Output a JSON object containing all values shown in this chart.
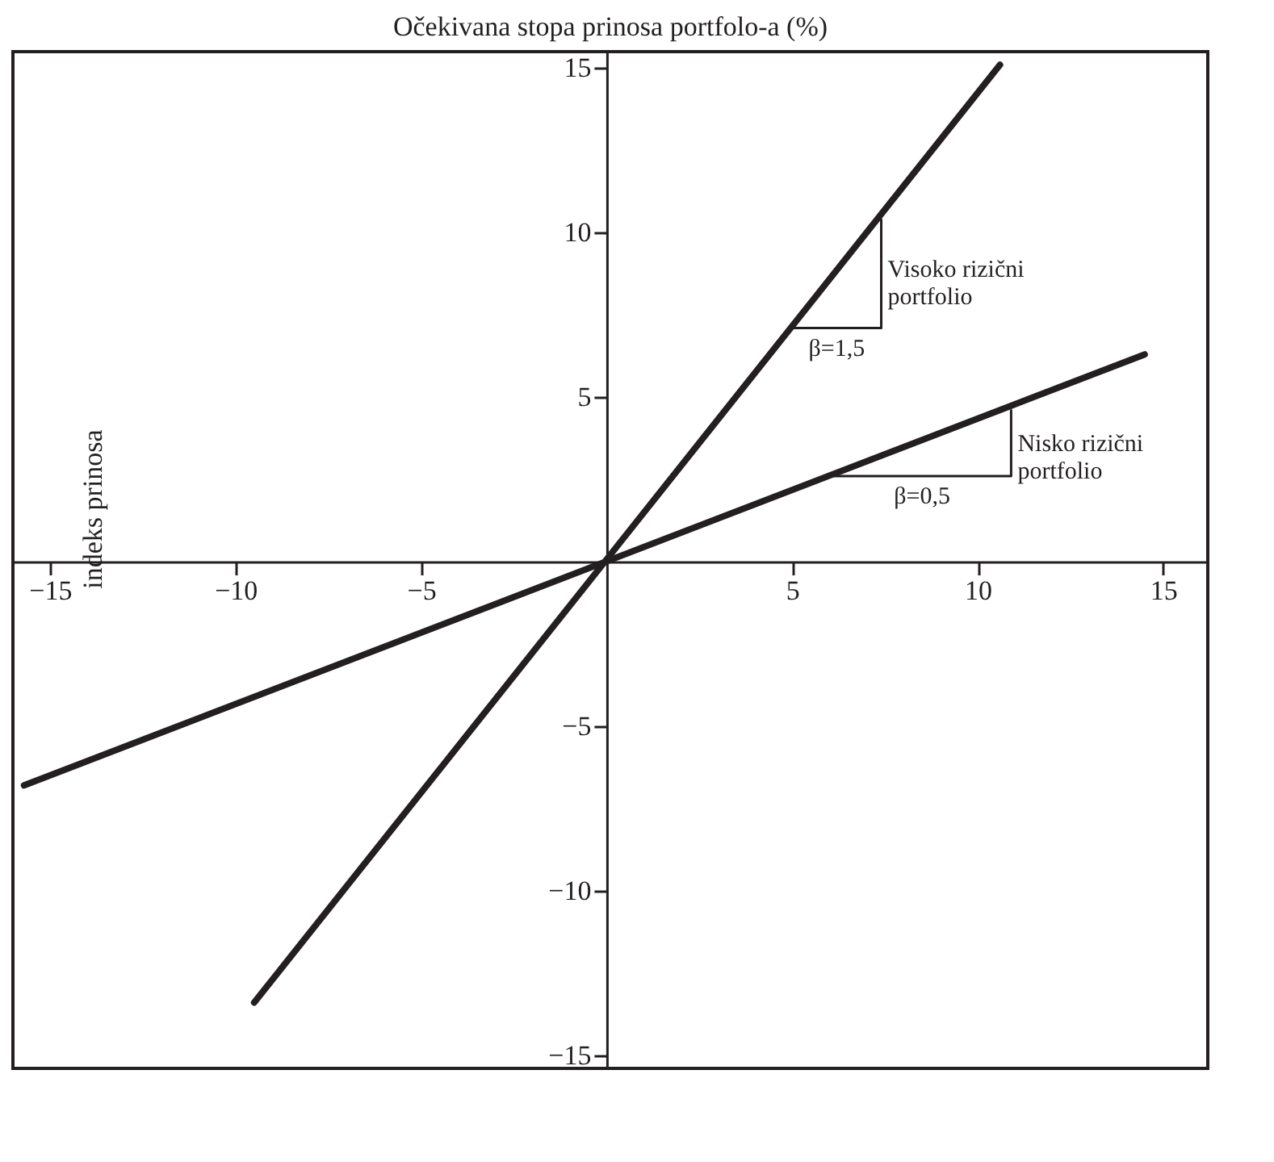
{
  "chart_data": {
    "type": "line",
    "title": "Očekivana stopa prinosa portfolo-a (%)",
    "ylabel": "indeks prinosa",
    "xlim": [
      -16,
      16.2
    ],
    "ylim": [
      -15.4,
      15.5
    ],
    "xticks": [
      -15,
      -10,
      -5,
      5,
      10,
      15
    ],
    "yticks": [
      -15,
      -10,
      -5,
      5,
      10,
      15
    ],
    "grid": false,
    "series": [
      {
        "color": "#231f20",
        "x": [
          -9.5,
          10.6
        ],
        "values": [
          -13.4,
          15.1
        ]
      },
      {
        "color": "#231f20",
        "x": [
          -15.7,
          14.5
        ],
        "values": [
          -6.8,
          6.3
        ]
      },
      {
        "color": "#231f20",
        "x": [
          5.0,
          7.4,
          7.4
        ],
        "values": [
          7.1,
          7.1,
          10.4
        ]
      },
      {
        "color": "#231f20",
        "x": [
          6.1,
          10.9,
          10.9
        ],
        "values": [
          2.6,
          2.6,
          4.6
        ]
      }
    ],
    "annotations": [
      {
        "text": "Visoko rizični portfolio",
        "x": 7.4,
        "y": 8.9
      },
      "β=1,5",
      {
        "text": "Nisko rizični portfolio",
        "x": 10.9,
        "y": 3.6
      },
      "β=0,5"
    ]
  }
}
